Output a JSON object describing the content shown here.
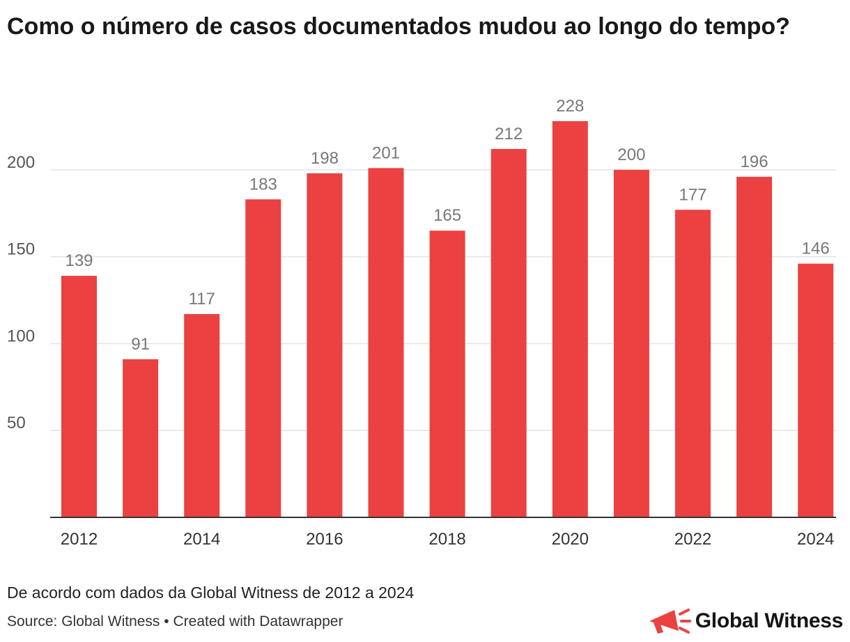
{
  "title": "Como o número de casos documentados mudou ao longo do tempo?",
  "notes": "De acordo com dados da Global Witness de 2012 a 2024",
  "footer": {
    "source": "Source: Global Witness",
    "separator": "•",
    "credit": "Created with Datawrapper"
  },
  "logo": {
    "text": "Global Witness",
    "icon": "megaphone-icon"
  },
  "colors": {
    "bar": "#EB4141",
    "grid": "#e3e3e3",
    "tick_text": "#555555",
    "value_label": "#777777",
    "axis": "#333333"
  },
  "chart_data": {
    "type": "bar",
    "categories": [
      "2012",
      "2013",
      "2014",
      "2015",
      "2016",
      "2017",
      "2018",
      "2019",
      "2020",
      "2021",
      "2022",
      "2023",
      "2024"
    ],
    "values": [
      139,
      91,
      117,
      183,
      198,
      201,
      165,
      212,
      228,
      200,
      177,
      196,
      146
    ],
    "x_tick_labels": [
      "2012",
      "2014",
      "2016",
      "2018",
      "2020",
      "2022",
      "2024"
    ],
    "y_ticks": [
      50,
      100,
      150,
      200
    ],
    "ylim": [
      0,
      228
    ],
    "grid": true,
    "value_labels": true,
    "title": "Como o número de casos documentados mudou ao longo do tempo?",
    "xlabel": "",
    "ylabel": ""
  }
}
